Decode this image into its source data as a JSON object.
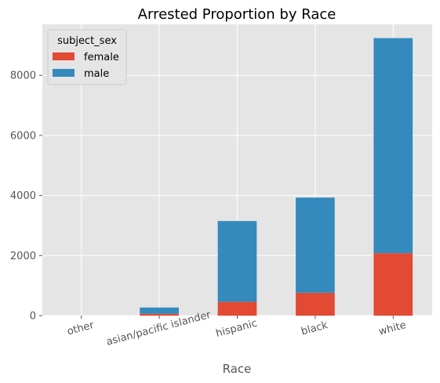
{
  "chart_data": {
    "type": "bar",
    "stacked": true,
    "title": "Arrested Proportion by  Race",
    "xlabel": "Race",
    "ylabel": "",
    "categories": [
      "other",
      "asian/pacific islander",
      "hispanic",
      "black",
      "white"
    ],
    "series": [
      {
        "name": "female",
        "color": "#E24A33",
        "values": [
          0,
          60,
          460,
          760,
          2080
        ]
      },
      {
        "name": "male",
        "color": "#348ABD",
        "values": [
          0,
          210,
          2690,
          3170,
          7160
        ]
      }
    ],
    "ylim": [
      0,
      9700
    ],
    "yticks": [
      0,
      2000,
      4000,
      6000,
      8000
    ],
    "grid": true,
    "legend": {
      "title": "subject_sex",
      "position": "top-left"
    },
    "style": {
      "background": "#E5E5E5",
      "grid_color": "#FFFFFF",
      "text_color": "#555555"
    }
  }
}
